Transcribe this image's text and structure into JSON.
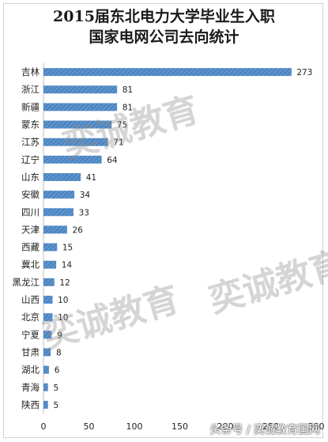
{
  "chart_data": {
    "type": "bar",
    "orientation": "horizontal",
    "title_lines": [
      "2015届东北电力大学毕业生入职",
      "国家电网公司去向统计"
    ],
    "categories": [
      "吉林",
      "浙江",
      "新疆",
      "蒙东",
      "江苏",
      "辽宁",
      "山东",
      "安徽",
      "四川",
      "天津",
      "西藏",
      "冀北",
      "黑龙江",
      "山西",
      "北京",
      "宁夏",
      "甘肃",
      "湖北",
      "青海",
      "陕西"
    ],
    "values": [
      273,
      81,
      81,
      75,
      71,
      64,
      41,
      34,
      33,
      26,
      15,
      14,
      12,
      10,
      10,
      9,
      8,
      6,
      5,
      5
    ],
    "xlim": [
      0,
      300
    ],
    "xticks": [
      0,
      50,
      100,
      150,
      200,
      250,
      300
    ],
    "grid": false,
    "bar_color": "#4a86c5",
    "bar_pattern": "diagonal-hatch",
    "data_labels": true
  },
  "watermark": {
    "text": "奕诚教育",
    "footer": "头条号 / 奕诚教育国网"
  }
}
